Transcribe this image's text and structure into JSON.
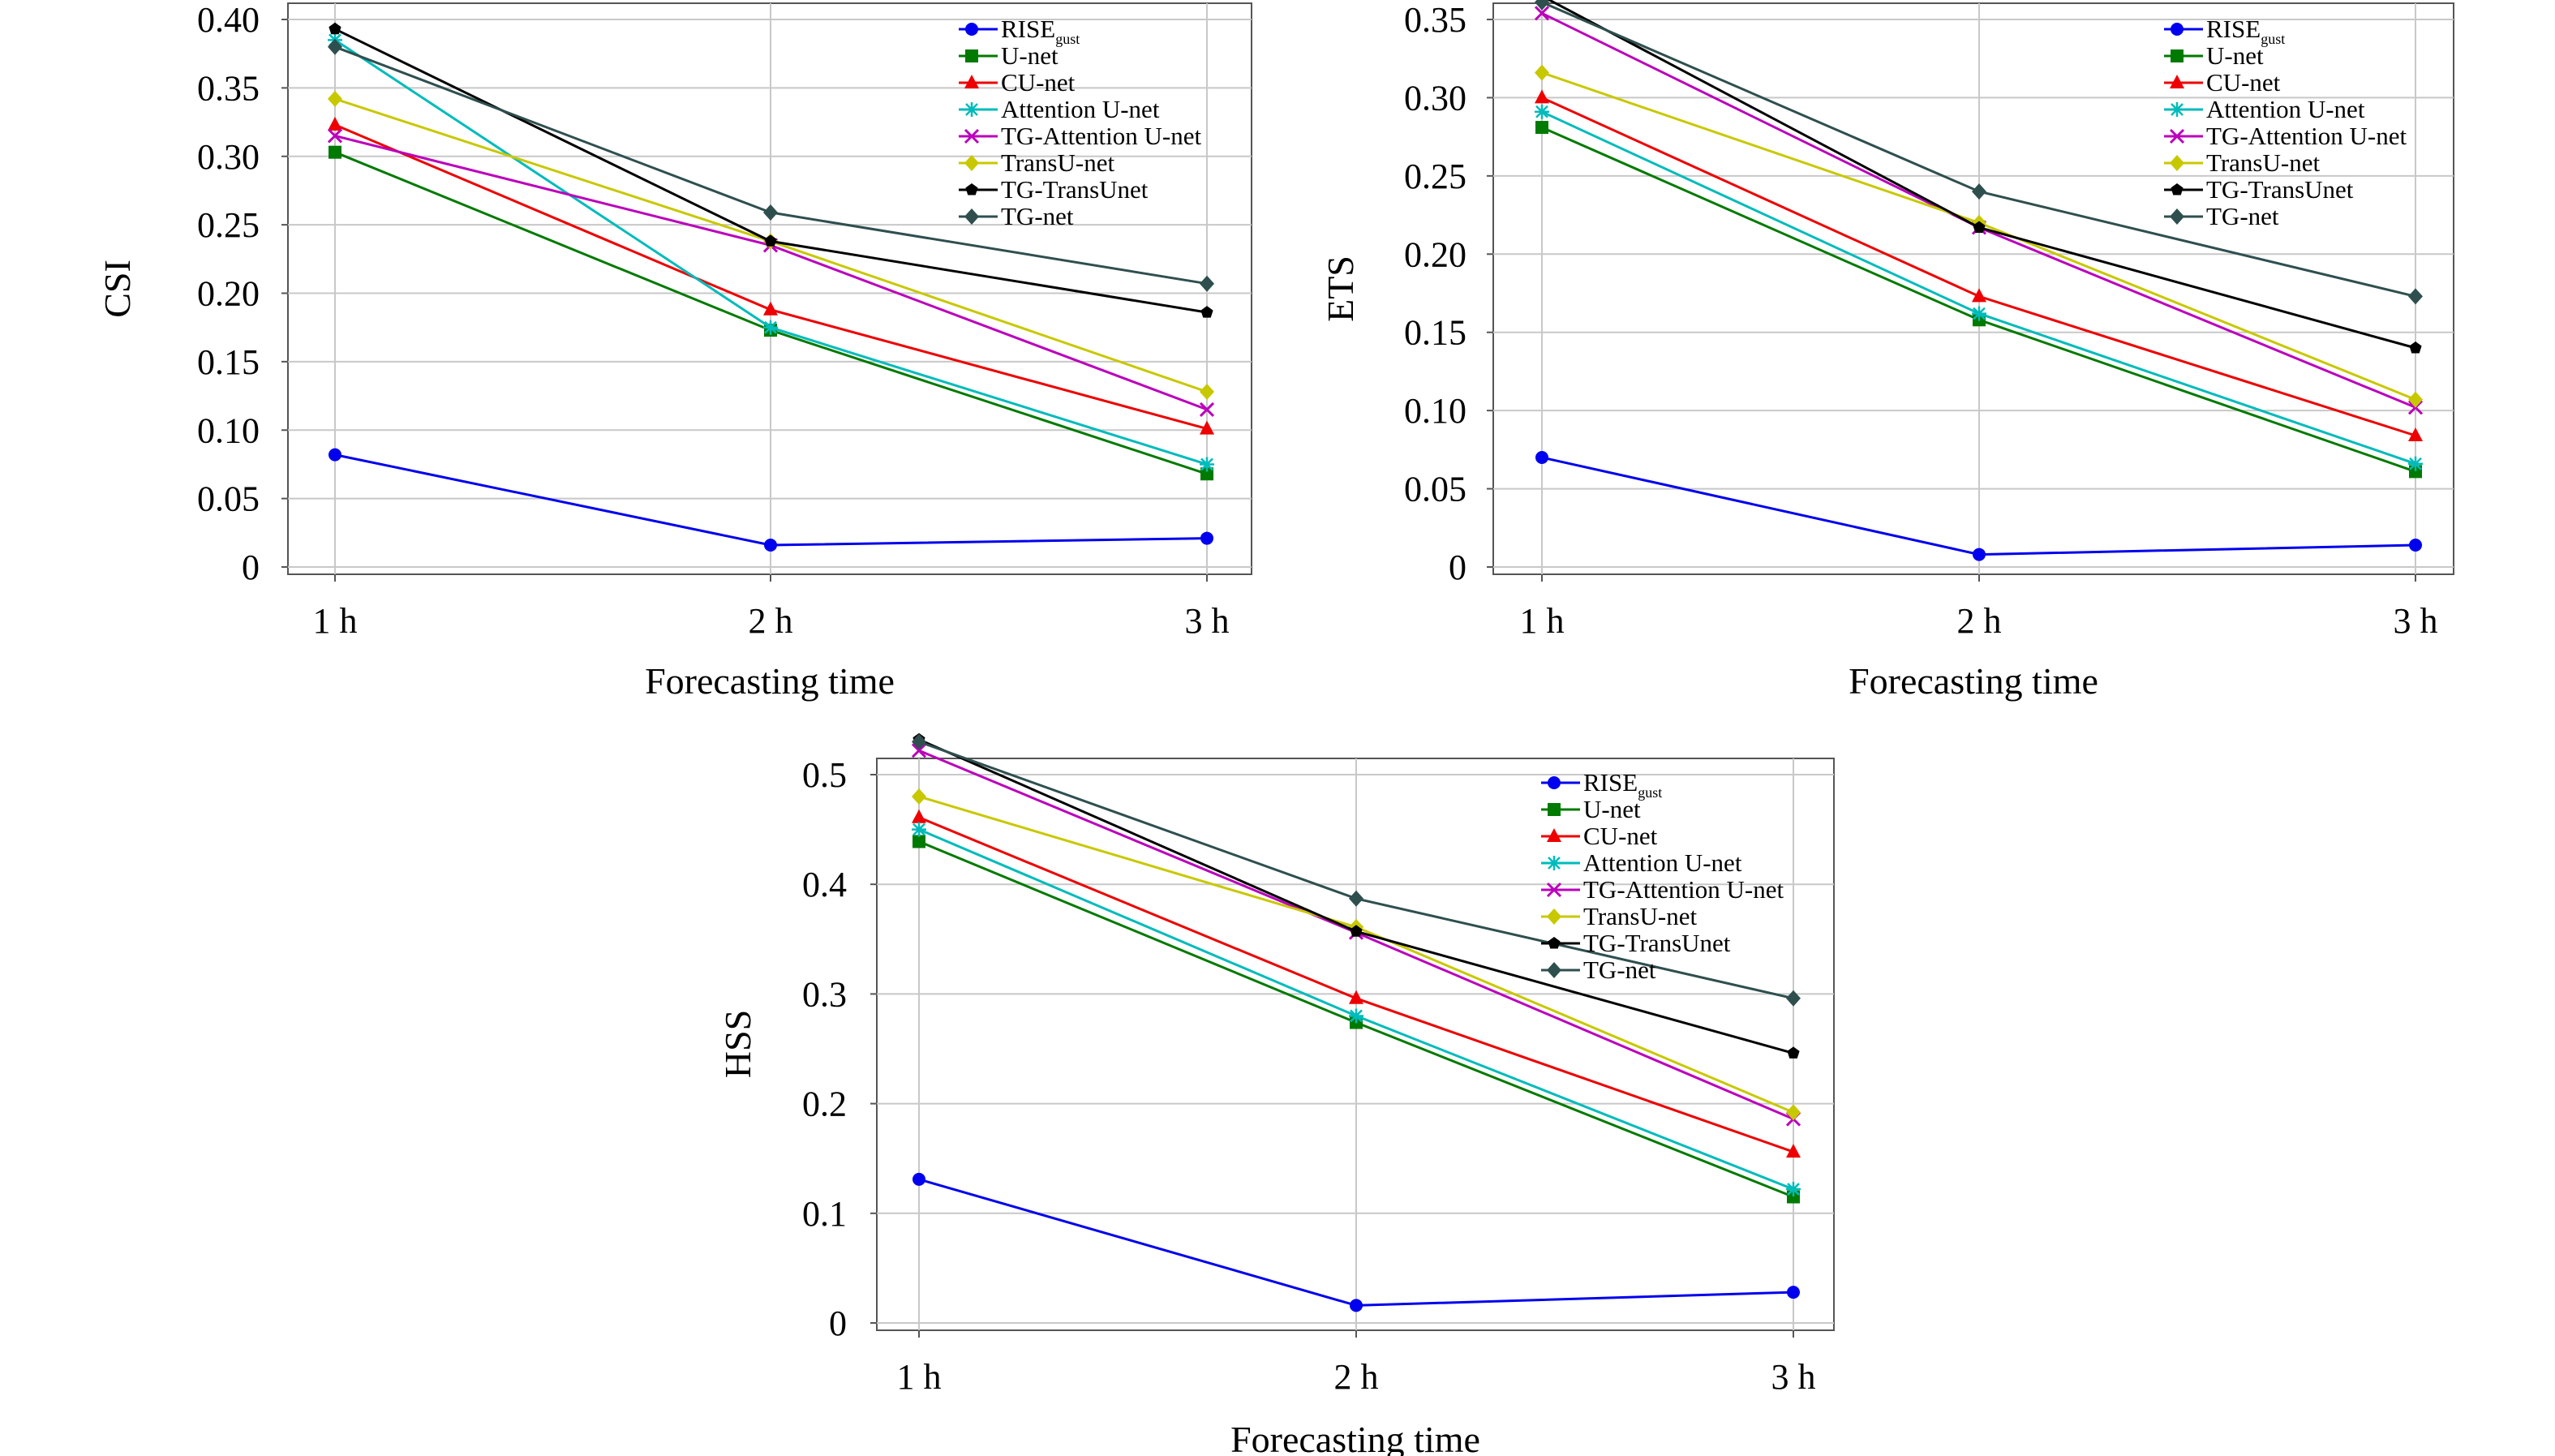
{
  "legend_sub": "gust",
  "chart_data": [
    {
      "type": "line",
      "title": "",
      "xlabel": "Forecasting time",
      "ylabel": "CSI",
      "categories": [
        "1 h",
        "2 h",
        "3 h"
      ],
      "ylim": [
        0,
        0.4
      ],
      "yticks": [
        "0",
        "0.05",
        "0.10",
        "0.15",
        "0.20",
        "0.25",
        "0.30",
        "0.35",
        "0.40"
      ],
      "grid": true,
      "legend": "top-right",
      "series": [
        {
          "name": "RISE",
          "color": "#0000ee",
          "marker": "circle",
          "values": [
            0.082,
            0.016,
            0.021
          ]
        },
        {
          "name": "U-net",
          "color": "#007a00",
          "marker": "square",
          "values": [
            0.303,
            0.173,
            0.068
          ]
        },
        {
          "name": "CU-net",
          "color": "#ee0000",
          "marker": "triangle",
          "values": [
            0.323,
            0.188,
            0.101
          ]
        },
        {
          "name": "Attention U-net",
          "color": "#00bbbb",
          "marker": "star",
          "values": [
            0.385,
            0.175,
            0.075
          ]
        },
        {
          "name": "TG-Attention U-net",
          "color": "#bb00bb",
          "marker": "x",
          "values": [
            0.315,
            0.235,
            0.115
          ]
        },
        {
          "name": "TransU-net",
          "color": "#c8c800",
          "marker": "diamond",
          "values": [
            0.342,
            0.238,
            0.128
          ]
        },
        {
          "name": "TG-TransUnet",
          "color": "#000000",
          "marker": "pentagon",
          "values": [
            0.393,
            0.238,
            0.186
          ]
        },
        {
          "name": "TG-net",
          "color": "#2f4f4f",
          "marker": "diamond",
          "values": [
            0.38,
            0.259,
            0.207
          ]
        }
      ]
    },
    {
      "type": "line",
      "title": "",
      "xlabel": "Forecasting time",
      "ylabel": "ETS",
      "categories": [
        "1 h",
        "2 h",
        "3 h"
      ],
      "ylim": [
        0,
        0.35
      ],
      "yticks": [
        "0",
        "0.05",
        "0.10",
        "0.15",
        "0.20",
        "0.25",
        "0.30",
        "0.35"
      ],
      "grid": true,
      "legend": "top-right",
      "series": [
        {
          "name": "RISE",
          "color": "#0000ee",
          "marker": "circle",
          "values": [
            0.07,
            0.008,
            0.014
          ]
        },
        {
          "name": "U-net",
          "color": "#007a00",
          "marker": "square",
          "values": [
            0.281,
            0.158,
            0.061
          ]
        },
        {
          "name": "CU-net",
          "color": "#ee0000",
          "marker": "triangle",
          "values": [
            0.3,
            0.173,
            0.084
          ]
        },
        {
          "name": "Attention U-net",
          "color": "#00bbbb",
          "marker": "star",
          "values": [
            0.291,
            0.162,
            0.066
          ]
        },
        {
          "name": "TG-Attention U-net",
          "color": "#bb00bb",
          "marker": "x",
          "values": [
            0.354,
            0.217,
            0.102
          ]
        },
        {
          "name": "TransU-net",
          "color": "#c8c800",
          "marker": "diamond",
          "values": [
            0.316,
            0.22,
            0.107
          ]
        },
        {
          "name": "TG-TransUnet",
          "color": "#000000",
          "marker": "pentagon",
          "values": [
            0.365,
            0.217,
            0.14
          ]
        },
        {
          "name": "TG-net",
          "color": "#2f4f4f",
          "marker": "diamond",
          "values": [
            0.361,
            0.24,
            0.173
          ]
        }
      ]
    },
    {
      "type": "line",
      "title": "",
      "xlabel": "Forecasting time",
      "ylabel": "HSS",
      "categories": [
        "1 h",
        "2 h",
        "3 h"
      ],
      "ylim": [
        0,
        0.5
      ],
      "yticks": [
        "0",
        "0.1",
        "0.2",
        "0.3",
        "0.4",
        "0.5"
      ],
      "grid": true,
      "legend": "top-right",
      "series": [
        {
          "name": "RISE",
          "color": "#0000ee",
          "marker": "circle",
          "values": [
            0.131,
            0.016,
            0.028
          ]
        },
        {
          "name": "U-net",
          "color": "#007a00",
          "marker": "square",
          "values": [
            0.439,
            0.274,
            0.115
          ]
        },
        {
          "name": "CU-net",
          "color": "#ee0000",
          "marker": "triangle",
          "values": [
            0.461,
            0.296,
            0.156
          ]
        },
        {
          "name": "Attention U-net",
          "color": "#00bbbb",
          "marker": "star",
          "values": [
            0.45,
            0.28,
            0.122
          ]
        },
        {
          "name": "TG-Attention U-net",
          "color": "#bb00bb",
          "marker": "x",
          "values": [
            0.522,
            0.356,
            0.186
          ]
        },
        {
          "name": "TransU-net",
          "color": "#c8c800",
          "marker": "diamond",
          "values": [
            0.48,
            0.361,
            0.192
          ]
        },
        {
          "name": "TG-TransUnet",
          "color": "#000000",
          "marker": "pentagon",
          "values": [
            0.532,
            0.357,
            0.246
          ]
        },
        {
          "name": "TG-net",
          "color": "#2f4f4f",
          "marker": "diamond",
          "values": [
            0.53,
            0.387,
            0.296
          ]
        }
      ]
    }
  ]
}
